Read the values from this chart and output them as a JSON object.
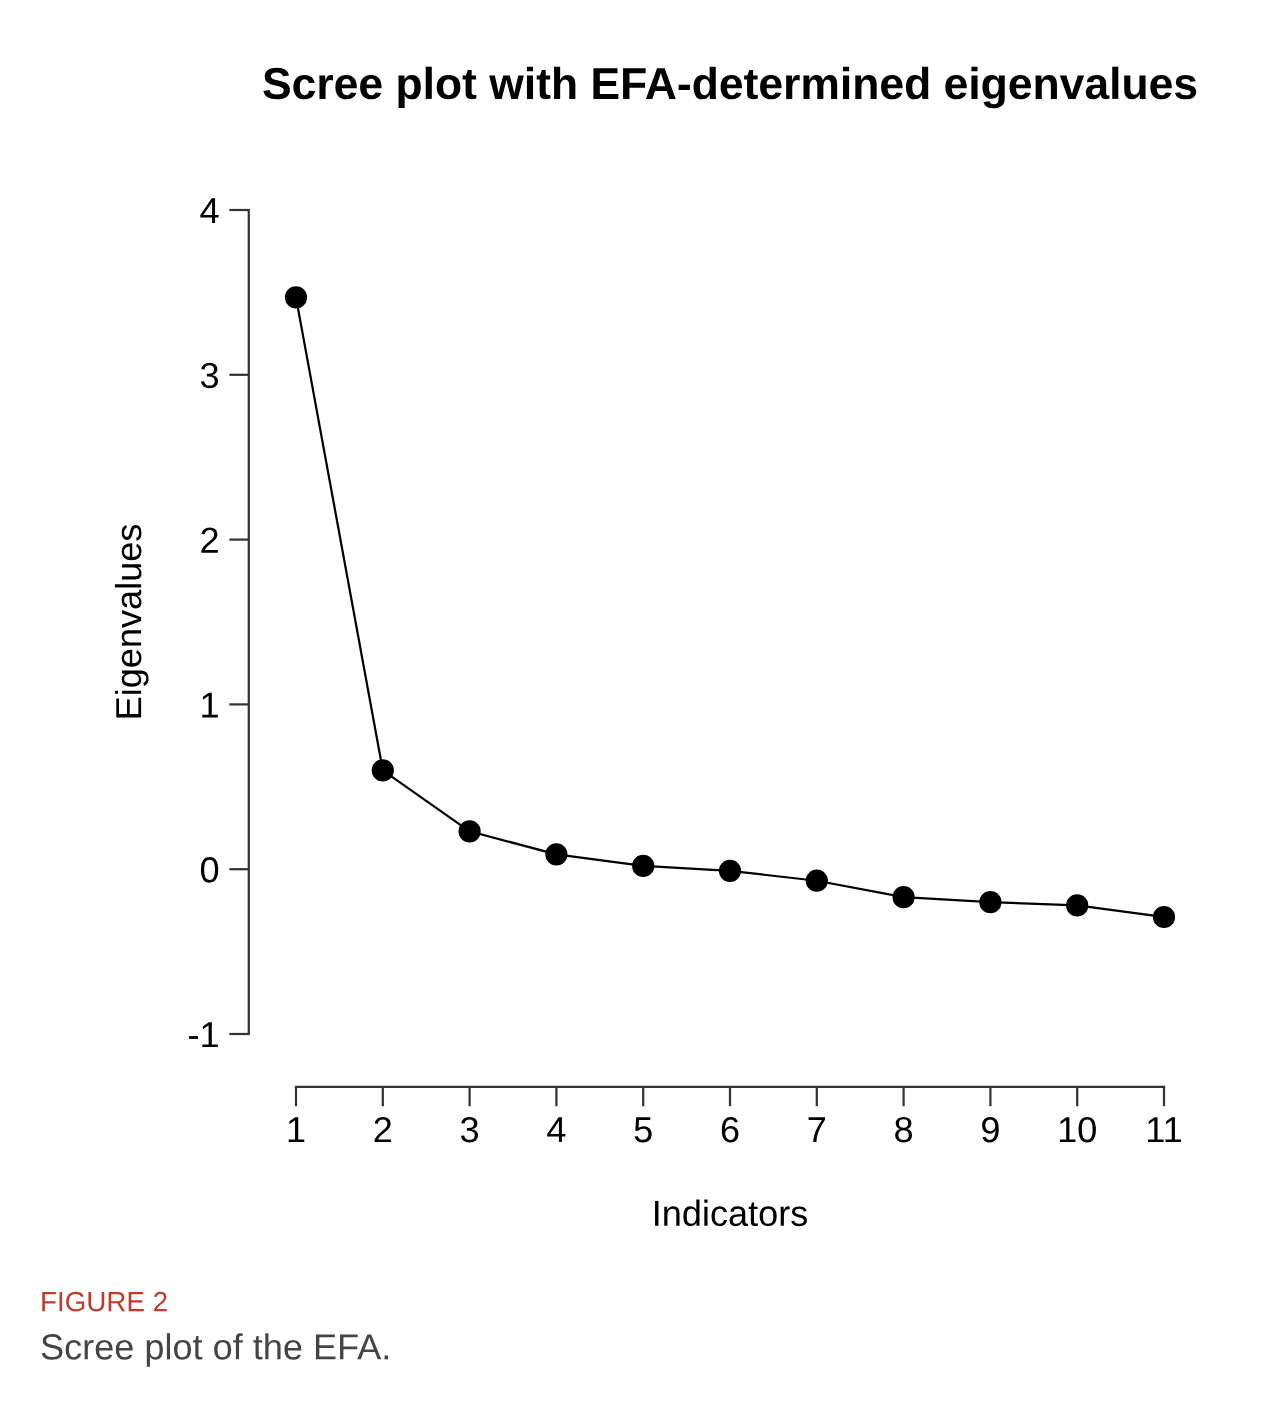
{
  "chart_data": {
    "type": "line",
    "title": "Scree plot with EFA-determined eigenvalues",
    "xlabel": "Indicators",
    "ylabel": "Eigenvalues",
    "x": [
      1,
      2,
      3,
      4,
      5,
      6,
      7,
      8,
      9,
      10,
      11
    ],
    "series": [
      {
        "color": "#000000",
        "values": [
          3.47,
          0.6,
          0.23,
          0.09,
          0.02,
          -0.01,
          -0.07,
          -0.17,
          -0.2,
          -0.22,
          -0.29
        ]
      }
    ],
    "xlim": [
      1,
      11
    ],
    "ylim": [
      -1,
      4
    ],
    "xticks": [
      1,
      2,
      3,
      4,
      5,
      6,
      7,
      8,
      9,
      10,
      11
    ],
    "yticks": [
      -1,
      0,
      1,
      2,
      3,
      4
    ],
    "marker": "circle",
    "line_style": "solid",
    "grid": false,
    "legend": false,
    "annotations": [
      "FIGURE 2",
      "Scree plot of the EFA."
    ]
  }
}
